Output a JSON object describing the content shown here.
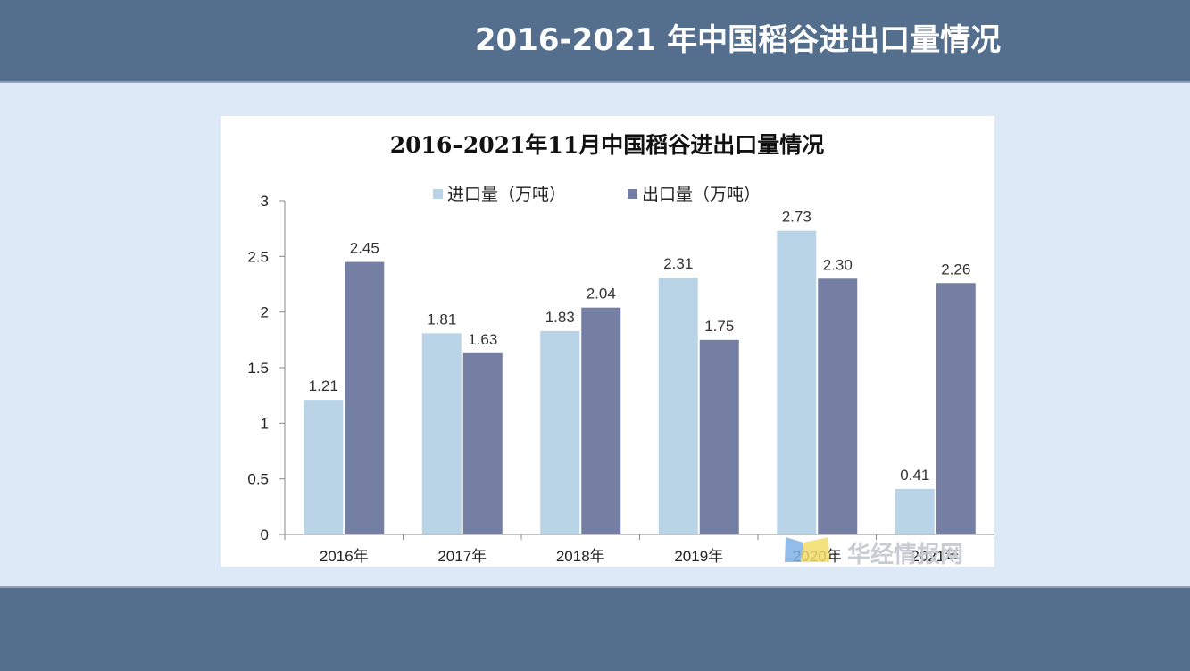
{
  "slide": {
    "title": "2016-2021 年中国稻谷进出口量情况"
  },
  "watermark": {
    "text": "华经情报网"
  },
  "colors": {
    "band": "#546e8e",
    "background": "#dde9f7",
    "import": "#b8d4e6",
    "export": "#747fa3"
  },
  "chart_data": {
    "type": "bar",
    "title": "2016–2021年11月中国稻谷进出口量情况",
    "categories": [
      "2016年",
      "2017年",
      "2018年",
      "2019年",
      "2020年",
      "2021年"
    ],
    "series": [
      {
        "name": "进口量（万吨）",
        "values": [
          1.21,
          1.81,
          1.83,
          2.31,
          2.73,
          0.41
        ]
      },
      {
        "name": "出口量（万吨）",
        "values": [
          2.45,
          1.63,
          2.04,
          1.75,
          2.3,
          2.26
        ]
      }
    ],
    "value_labels": [
      [
        "1.21",
        "1.81",
        "1.83",
        "2.31",
        "2.73",
        "0.41"
      ],
      [
        "2.45",
        "1.63",
        "2.04",
        "1.75",
        "2.30",
        "2.26"
      ]
    ],
    "yticks": [
      "0",
      "0.5",
      "1",
      "1.5",
      "2",
      "2.5",
      "3"
    ],
    "ylim": [
      0,
      3
    ],
    "grid": false,
    "legend": "top"
  }
}
